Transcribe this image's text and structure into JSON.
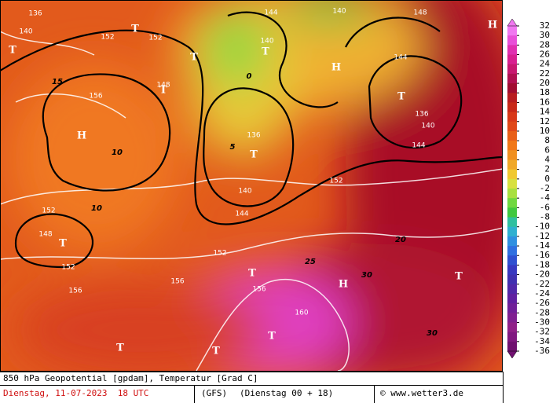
{
  "map": {
    "labels": [
      "144",
      "140",
      "148",
      "H",
      "136",
      "140",
      "T",
      "152",
      "152",
      "T",
      "T",
      "140",
      "T",
      "144",
      "H",
      "148",
      "T",
      "156",
      "T",
      "136",
      "140",
      "136",
      "T",
      "H",
      "144",
      "140",
      "144",
      "152",
      "152",
      "148",
      "T",
      "152",
      "152",
      "156",
      "156",
      "T",
      "H",
      "156",
      "160",
      "T",
      "T",
      "T",
      "T",
      "10",
      "10",
      "15",
      "20",
      "30",
      "30",
      "25",
      "5",
      "0"
    ]
  },
  "colorbar": {
    "ticks": [
      32,
      30,
      28,
      26,
      24,
      22,
      20,
      18,
      16,
      14,
      12,
      10,
      8,
      6,
      4,
      2,
      0,
      -2,
      -4,
      -6,
      -8,
      -10,
      -12,
      -14,
      -16,
      -18,
      -20,
      -22,
      -24,
      -26,
      -28,
      -30,
      -32,
      -34,
      -36
    ],
    "colors": [
      "#f078f0",
      "#e850d8",
      "#e030b0",
      "#d82090",
      "#c81870",
      "#b01050",
      "#a00c30",
      "#b81c20",
      "#c82818",
      "#d83818",
      "#e04818",
      "#e86018",
      "#f07818",
      "#f09020",
      "#f0a828",
      "#f0c830",
      "#d8e040",
      "#a8e040",
      "#70d840",
      "#40c840",
      "#30c0a0",
      "#30b0d0",
      "#3090e0",
      "#3070e0",
      "#3050d0",
      "#3838c0",
      "#4030b0",
      "#5028a8",
      "#6020a0",
      "#702098",
      "#802090",
      "#902088",
      "#801880",
      "#701070"
    ]
  },
  "footer": {
    "title": "850 hPa Geopotential [gpdam], Temperatur [Grad C]",
    "date": "Dienstag, 11-07-2023  18 UTC",
    "model": "(GFS)",
    "run": "(Dienstag 00 + 18)",
    "credit": "© www.wetter3.de"
  }
}
